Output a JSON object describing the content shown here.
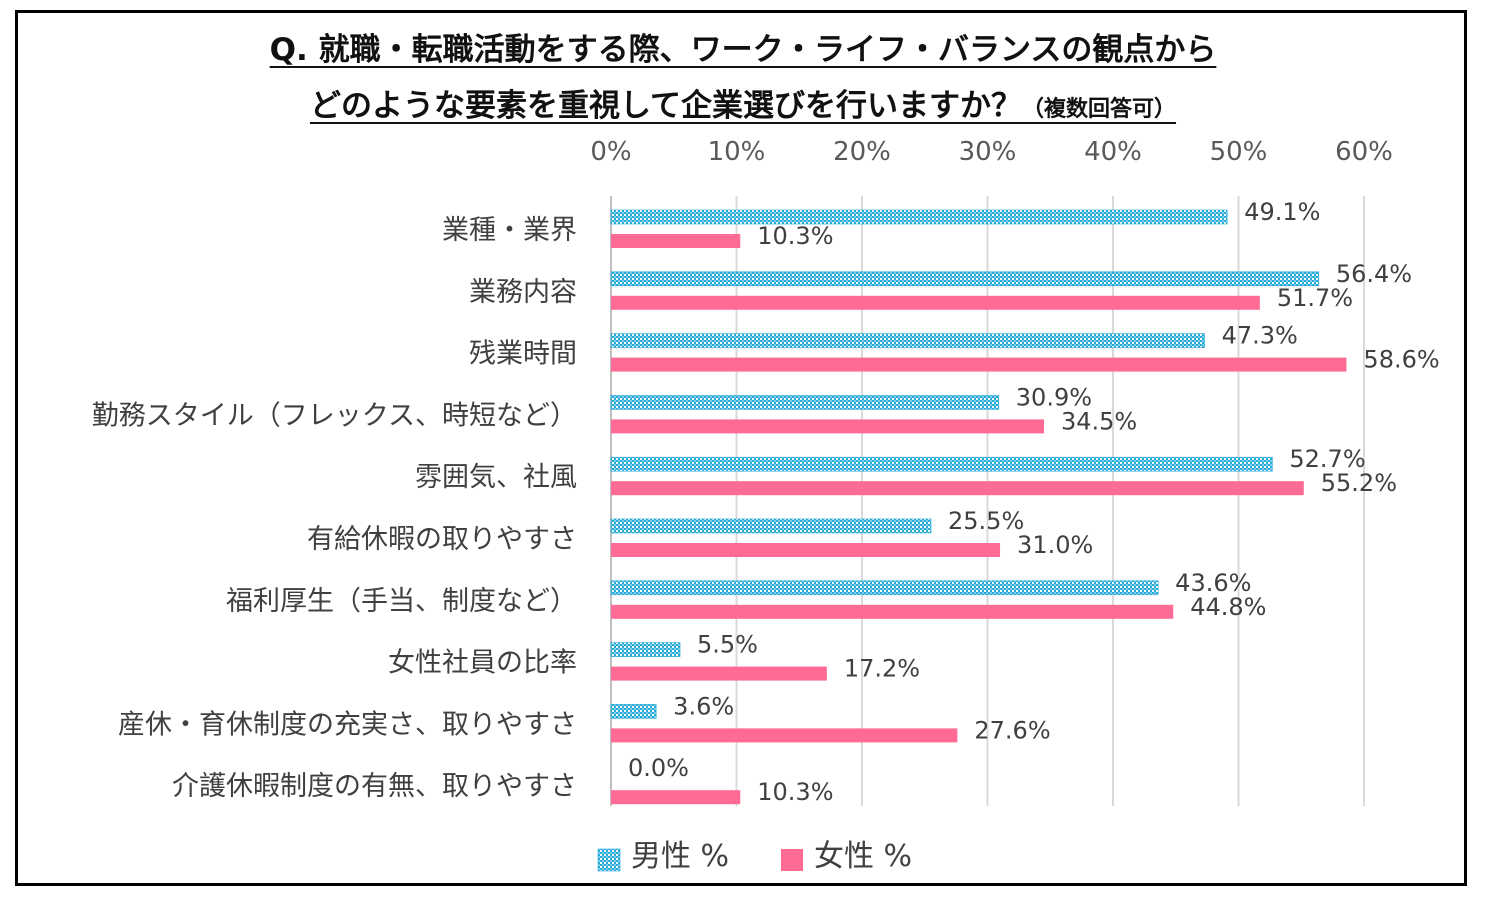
{
  "title_line1": "Q. 就職・転職活動をする際、ワーク・ライフ・バランスの観点から",
  "title_line2": "どのような要素を重視して企業選びを行いますか？",
  "title_note": "（複数回答可）",
  "colors": {
    "male": "#27a9d8",
    "female": "#ff6b94",
    "grid": "#d9d9d9"
  },
  "chart_data": {
    "type": "bar",
    "orientation": "horizontal",
    "categories": [
      "業種・業界",
      "業務内容",
      "残業時間",
      "勤務スタイル（フレックス、時短など）",
      "雰囲気、社風",
      "有給休暇の取りやすさ",
      "福利厚生（手当、制度など）",
      "女性社員の比率",
      "産休・育休制度の充実さ、取りやすさ",
      "介護休暇制度の有無、取りやすさ"
    ],
    "series": [
      {
        "name": "男性 %",
        "values": [
          49.1,
          56.4,
          47.3,
          30.9,
          52.7,
          25.5,
          43.6,
          5.5,
          3.6,
          0.0
        ]
      },
      {
        "name": "女性 %",
        "values": [
          10.3,
          51.7,
          58.6,
          34.5,
          55.2,
          31.0,
          44.8,
          17.2,
          27.6,
          10.3
        ]
      }
    ],
    "xlim": [
      0,
      60
    ],
    "xticks": [
      "0%",
      "10%",
      "20%",
      "30%",
      "40%",
      "50%",
      "60%"
    ],
    "axis_position": "top",
    "grid": true,
    "legend": "bottom",
    "value_format": "0.0%"
  }
}
